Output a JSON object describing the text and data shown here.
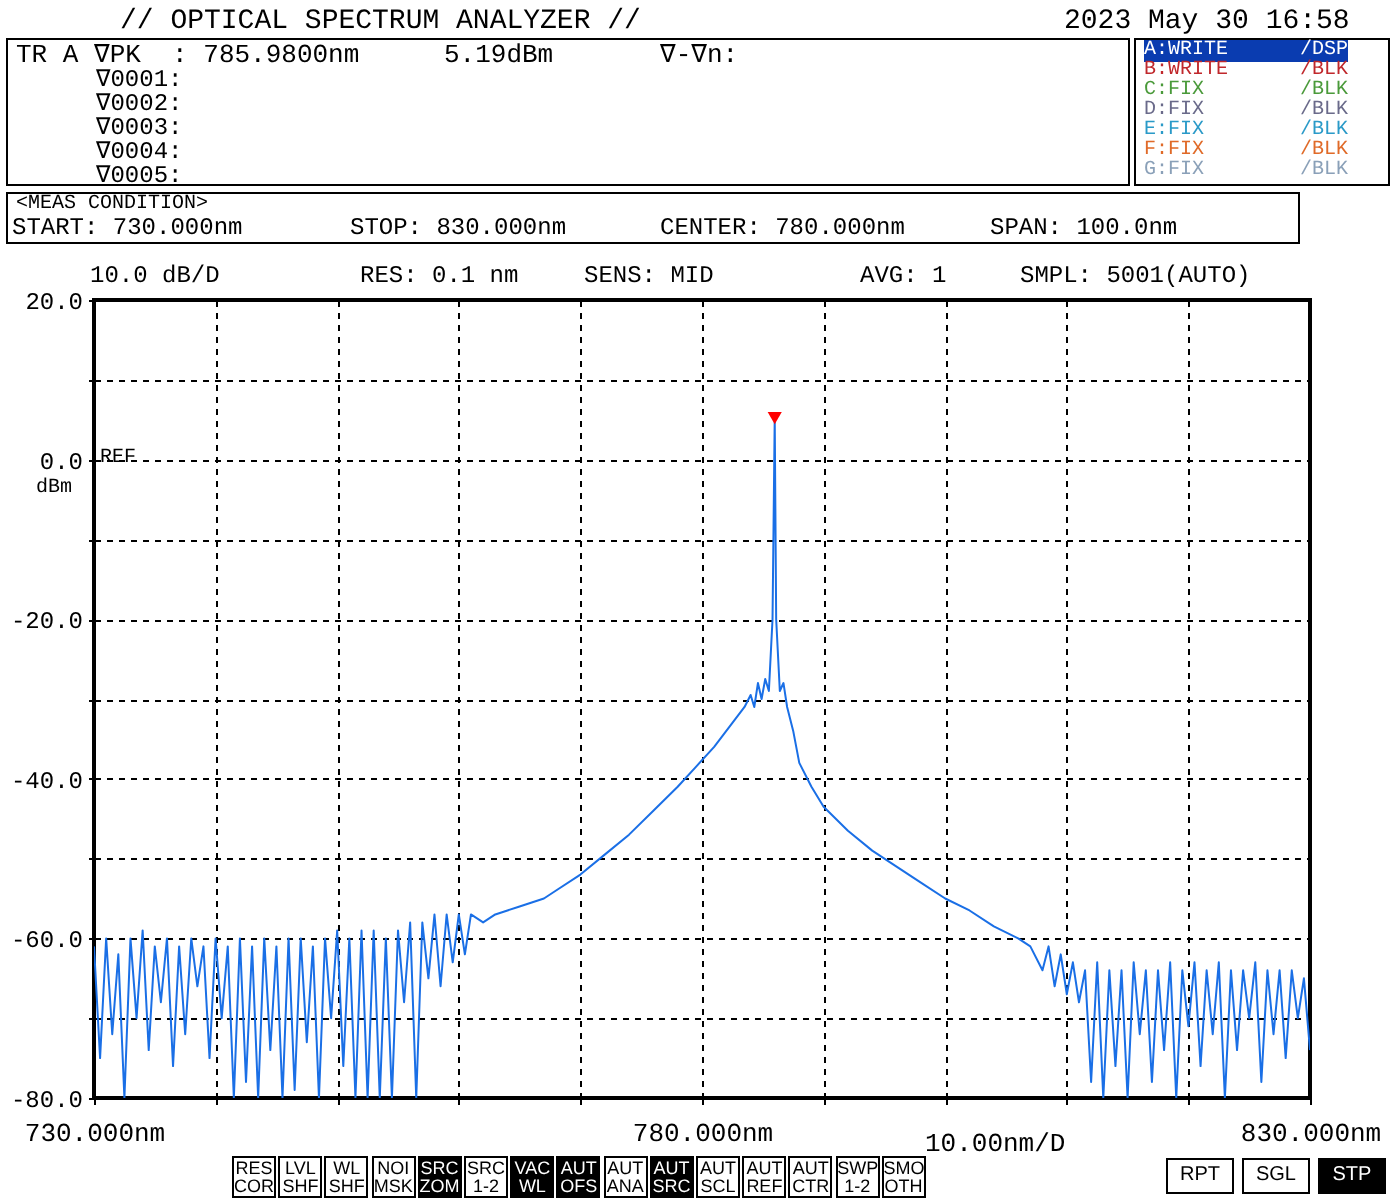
{
  "chart_data": {
    "type": "line",
    "annotations": [
      "// OPTICAL SPECTRUM ANALYZER //",
      "2023 May 30 16:58",
      "TR A ∇PK  : 785.9800nm",
      "5.19dBm",
      "∇-∇n:",
      "∇0001:",
      "∇0002:",
      "∇0003:",
      "∇0004:",
      "∇0005:",
      "A:WRITE      /DSP",
      "B:WRITE      /BLK",
      "C:FIX        /BLK",
      "D:FIX        /BLK",
      "E:FIX        /BLK",
      "F:FIX        /BLK",
      "G:FIX        /BLK",
      "<MEAS CONDITION>",
      "START: 730.000nm",
      "STOP: 830.000nm",
      "CENTER: 780.000nm",
      "SPAN: 100.0nm",
      "10.0 dB/D",
      "RES: 0.1 nm",
      "SENS: MID",
      "AVG: 1",
      "SMPL: 5001(AUTO)",
      "REF",
      "dBm",
      "RES COR",
      "LVL SHF",
      "WL SHF",
      "NOI MSK",
      "SRC ZOM",
      "SRC 1-2",
      "VAC WL",
      "AUT OFS",
      "AUT ANA",
      "AUT SRC",
      "AUT SCL",
      "AUT REF",
      "AUT CTR",
      "SWP 1-2",
      "SMO OTH",
      "RPT",
      "SGL",
      "STP"
    ],
    "xlabel": "10.00nm/D",
    "xlim": [
      730,
      830
    ],
    "xticks": [
      {
        "value": 730,
        "label": "730.000nm"
      },
      {
        "value": 740,
        "label": null
      },
      {
        "value": 750,
        "label": null
      },
      {
        "value": 760,
        "label": null
      },
      {
        "value": 770,
        "label": null
      },
      {
        "value": 780,
        "label": "780.000nm"
      },
      {
        "value": 790,
        "label": null
      },
      {
        "value": 800,
        "label": null
      },
      {
        "value": 810,
        "label": null
      },
      {
        "value": 820,
        "label": null
      },
      {
        "value": 830,
        "label": "830.000nm"
      }
    ],
    "ylim": [
      -80,
      20
    ],
    "yticks": [
      {
        "value": 20,
        "label": "20.0"
      },
      {
        "value": 10,
        "label": null
      },
      {
        "value": 0,
        "label": "0.0"
      },
      {
        "value": -10,
        "label": null
      },
      {
        "value": -20,
        "label": "-20.0"
      },
      {
        "value": -30,
        "label": null
      },
      {
        "value": -40,
        "label": "-40.0"
      },
      {
        "value": -50,
        "label": null
      },
      {
        "value": -60,
        "label": "-60.0"
      },
      {
        "value": -70,
        "label": null
      },
      {
        "value": -80,
        "label": "-80.0"
      }
    ],
    "grid": true,
    "series": [
      {
        "color": "#1a6fe6",
        "x": [
          730,
          730.5,
          731,
          731.5,
          732,
          732.5,
          733,
          733.5,
          734,
          734.5,
          735,
          735.5,
          736,
          736.5,
          737,
          737.5,
          738,
          738.5,
          739,
          739.5,
          740,
          740.5,
          741,
          741.5,
          742,
          742.5,
          743,
          743.5,
          744,
          744.5,
          745,
          745.5,
          746,
          746.5,
          747,
          747.5,
          748,
          748.5,
          749,
          749.5,
          750,
          750.5,
          751,
          751.5,
          752,
          752.5,
          753,
          753.5,
          754,
          754.5,
          755,
          755.5,
          756,
          756.5,
          757,
          757.5,
          758,
          758.5,
          759,
          759.5,
          760,
          760.5,
          761,
          762,
          763,
          764,
          765,
          766,
          767,
          768,
          770,
          772,
          774,
          776,
          778,
          779.5,
          781,
          782.5,
          783.5,
          784,
          784.3,
          784.6,
          784.9,
          785.2,
          785.5,
          785.8,
          785.98,
          786.1,
          786.4,
          786.7,
          787,
          787.5,
          788,
          789,
          790,
          792,
          794,
          796,
          798,
          800,
          802,
          804,
          806,
          807,
          808,
          808.5,
          809,
          809.5,
          810,
          810.5,
          811,
          811.5,
          812,
          812.5,
          813,
          813.5,
          814,
          814.5,
          815,
          815.5,
          816,
          816.5,
          817,
          817.5,
          818,
          818.5,
          819,
          819.5,
          820,
          820.5,
          821,
          821.5,
          822,
          822.5,
          823,
          823.5,
          824,
          824.5,
          825,
          825.5,
          826,
          826.5,
          827,
          827.5,
          828,
          828.5,
          829,
          829.5,
          830
        ],
        "values": [
          -61,
          -75,
          -60,
          -72,
          -62,
          -80,
          -60,
          -70,
          -59,
          -74,
          -61,
          -68,
          -60,
          -76,
          -61,
          -72,
          -60,
          -66,
          -61,
          -75,
          -60,
          -70,
          -61,
          -80,
          -60,
          -78,
          -61,
          -80,
          -60,
          -74,
          -61,
          -80,
          -60,
          -79,
          -60,
          -73,
          -61,
          -80,
          -60,
          -70,
          -59,
          -76,
          -60,
          -80,
          -59,
          -80,
          -59,
          -80,
          -60,
          -80,
          -59,
          -68,
          -58,
          -80,
          -58,
          -65,
          -57,
          -66,
          -57,
          -63,
          -57,
          -62,
          -57,
          -58,
          -57,
          -56.5,
          -56,
          -55.5,
          -55,
          -54,
          -52,
          -49.5,
          -47,
          -44,
          -41,
          -38.5,
          -36,
          -33,
          -31,
          -29.5,
          -31,
          -28,
          -30,
          -27.5,
          -29,
          -20,
          5.19,
          -20,
          -29,
          -28,
          -31,
          -34,
          -38,
          -41,
          -43.5,
          -46.5,
          -49,
          -51,
          -53,
          -55,
          -56.5,
          -58.5,
          -60,
          -61,
          -64,
          -61,
          -66,
          -62,
          -67,
          -63,
          -68,
          -64,
          -78,
          -63,
          -80,
          -64,
          -76,
          -64,
          -80,
          -63,
          -72,
          -64,
          -78,
          -64,
          -74,
          -63,
          -80,
          -64,
          -71,
          -63,
          -76,
          -64,
          -72,
          -63,
          -80,
          -64,
          -74,
          -64,
          -70,
          -63,
          -78,
          -64,
          -72,
          -64,
          -75,
          -64,
          -70,
          -65,
          -74
        ]
      },
      {
        "type": "scatter",
        "color": "#ff0000",
        "marker": "triangle",
        "x": [
          785.98
        ],
        "values": [
          5.19
        ]
      }
    ]
  }
}
